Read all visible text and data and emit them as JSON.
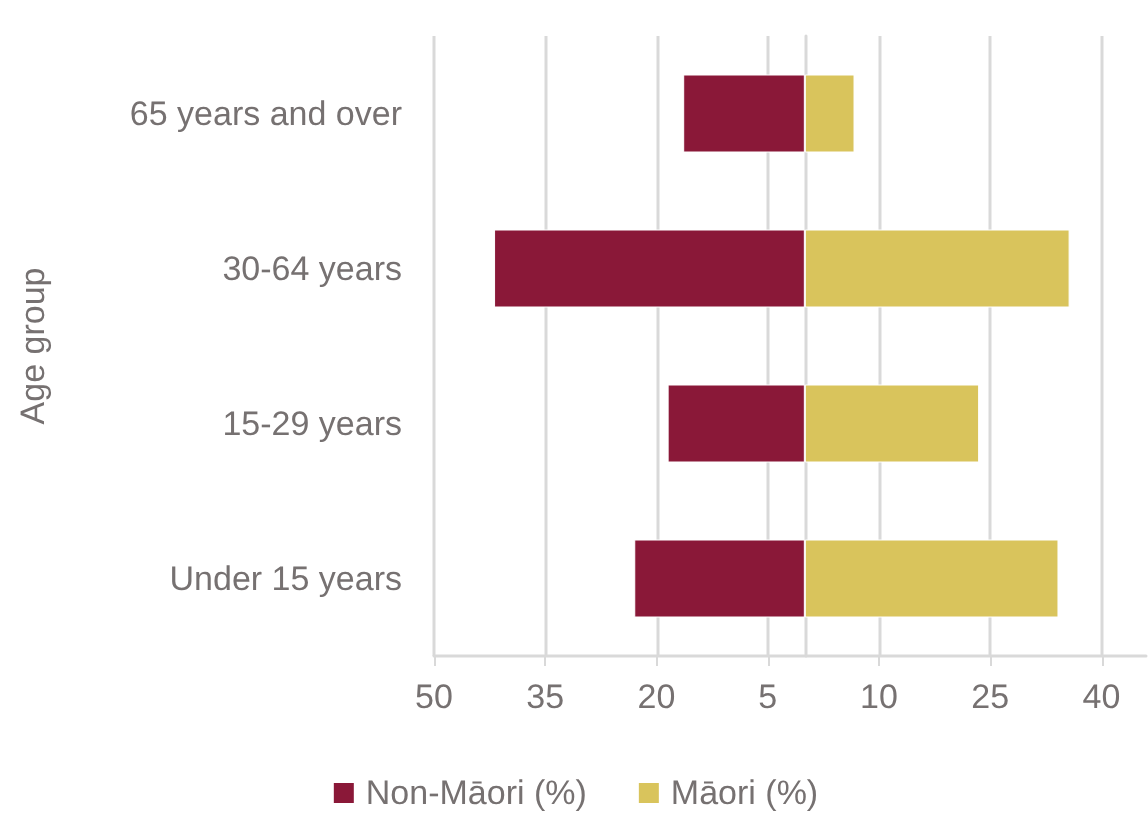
{
  "chart_data": {
    "type": "bar",
    "orientation": "horizontal",
    "ylabel": "Age group",
    "categories": [
      "65 years and over",
      "30-64 years",
      "15-29 years",
      "Under 15 years"
    ],
    "series": [
      {
        "name": "Non-Māori (%)",
        "color": "#8a1838",
        "values": [
          -16.4,
          -41.9,
          -18.5,
          -23.0
        ]
      },
      {
        "name": "Māori (%)",
        "color": "#d9c45c",
        "values": [
          6.7,
          35.7,
          23.5,
          34.2
        ]
      }
    ],
    "xlim": [
      -50,
      46
    ],
    "xticks": [
      {
        "value": -50,
        "label": "50"
      },
      {
        "value": -35,
        "label": "35"
      },
      {
        "value": -20,
        "label": "20"
      },
      {
        "value": -5,
        "label": "5"
      },
      10,
      25,
      40
    ],
    "stacked": true,
    "grid": "x",
    "legend": "bottom"
  }
}
